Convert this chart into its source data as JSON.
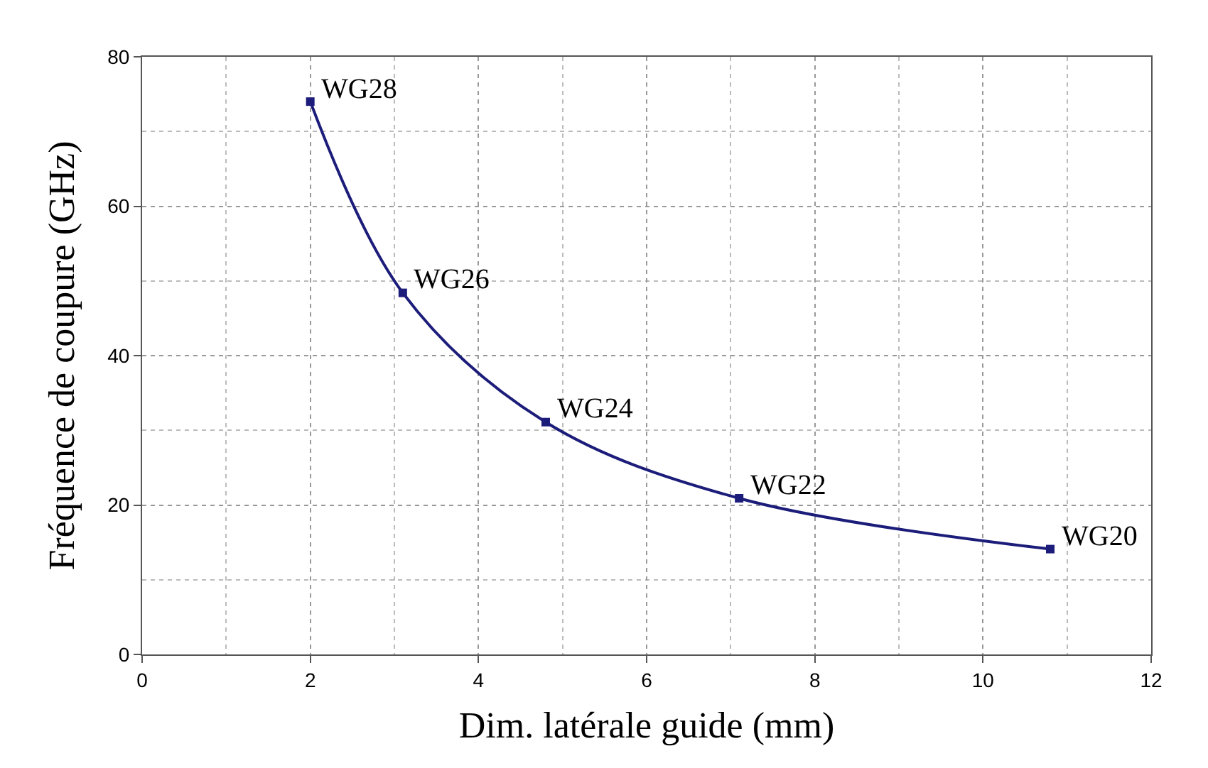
{
  "chart_data": {
    "type": "line",
    "xlabel": "Dim. latérale guide (mm)",
    "ylabel": "Fréquence de coupure (GHz)",
    "x": [
      2.0,
      3.1,
      4.8,
      7.1,
      10.8
    ],
    "series": [
      {
        "color": "#1c1c7a",
        "values": [
          74,
          48.4,
          31.1,
          20.9,
          14.1
        ]
      }
    ],
    "xlim": [
      0,
      12
    ],
    "xticks": [
      0,
      2,
      4,
      6,
      8,
      10,
      12
    ],
    "ylim": [
      0,
      80
    ],
    "yticks": [
      0,
      20,
      40,
      60,
      80
    ],
    "grid": true,
    "marker": "square",
    "line_style": "solid",
    "legend": false,
    "annotations": [
      {
        "text": "WG28",
        "x": 2.0,
        "y": 74
      },
      {
        "text": "WG26",
        "x": 3.1,
        "y": 48.4
      },
      {
        "text": "WG24",
        "x": 4.8,
        "y": 31.1
      },
      {
        "text": "WG22",
        "x": 7.1,
        "y": 20.9
      },
      {
        "text": "WG20",
        "x": 10.8,
        "y": 14.1
      }
    ]
  }
}
